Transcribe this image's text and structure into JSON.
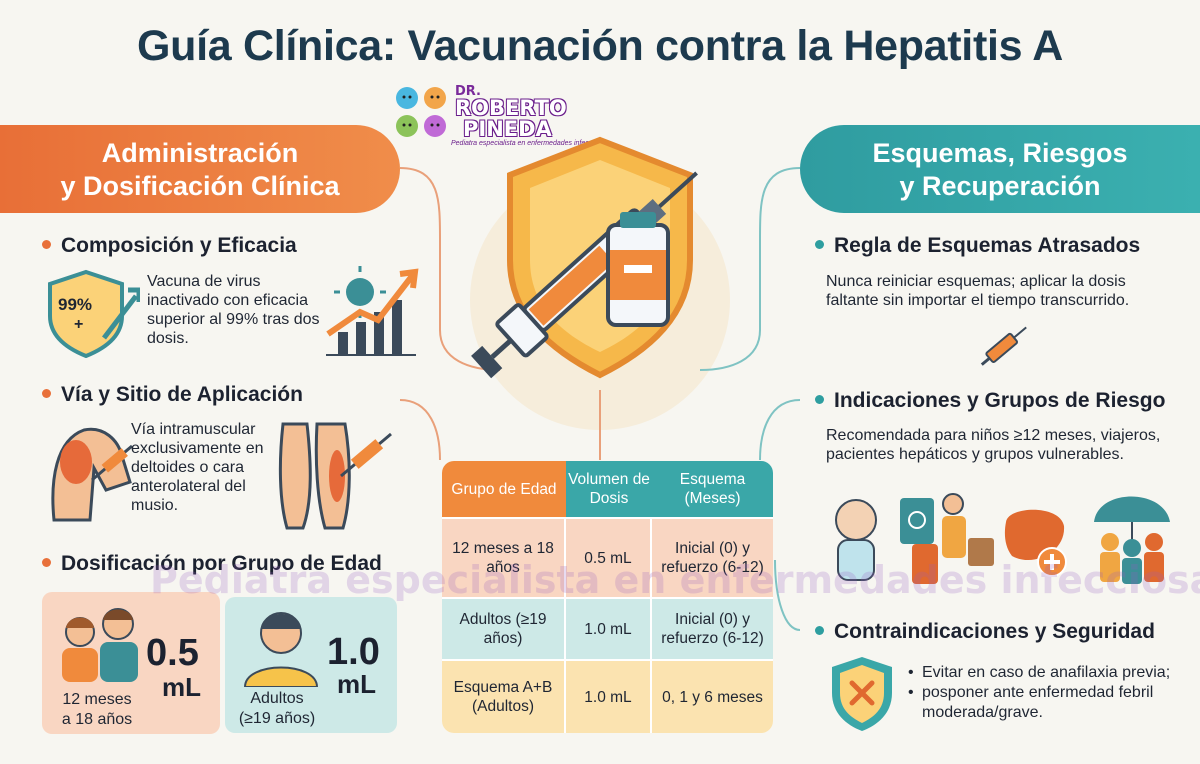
{
  "title": "Guía Clínica: Vacunación contra la Hepatitis A",
  "logo": {
    "prefix": "DR.",
    "line1": "ROBERTO",
    "line2": "PINEDA",
    "tagline": "Pediatra especialista en enfermedades infecciosas"
  },
  "left_section": {
    "banner_line1": "Administración",
    "banner_line2": "y Dosificación Clínica",
    "composition": {
      "heading": "Composición y Eficacia",
      "badge": "99%",
      "badge_plus": "+",
      "text": "Vacuna de virus inactivado con eficacia superior al 99% tras dos dosis."
    },
    "route": {
      "heading": "Vía y Sitio de Aplicación",
      "text": "Vía intramuscular exclusivamente en deltoides o cara anterolateral del musio."
    },
    "dosing": {
      "heading": "Dosificación por Grupo de Edad",
      "card_children": {
        "dose": "0.5",
        "unit": "mL",
        "label_line1": "12 meses",
        "label_line2": "a 18 años"
      },
      "card_adults": {
        "dose": "1.0",
        "unit": "mL",
        "label_line1": "Adultos",
        "label_line2": "(≥19 años)"
      }
    }
  },
  "right_section": {
    "banner_line1": "Esquemas, Riesgos",
    "banner_line2": "y Recuperación",
    "late_schedule": {
      "heading": "Regla de Esquemas Atrasados",
      "text": "Nunca reiniciar esquemas; aplicar la dosis faltante sin importar el tiempo transcurrido."
    },
    "indications": {
      "heading": "Indicaciones y Grupos de Riesgo",
      "text": "Recomendada para niños ≥12 meses, viajeros, pacientes hepáticos y grupos vulnerables."
    },
    "contraindications": {
      "heading": "Contraindicaciones y Seguridad",
      "bullets": [
        "Evitar en caso de anafilaxia previa;",
        "posponer ante enfermedad febril moderada/grave."
      ]
    }
  },
  "table": {
    "headers": [
      "Grupo de Edad",
      "Volumen de Dosis",
      "Esquema (Meses)"
    ],
    "rows": [
      [
        "12 meses a 18 años",
        "0.5 mL",
        "Inicial (0) y refuerzo (6-12)"
      ],
      [
        "Adultos (≥19 años)",
        "1.0 mL",
        "Inicial (0) y refuerzo (6-12)"
      ],
      [
        "Esquema A+B (Adultos)",
        "1.0 mL",
        "0, 1 y 6 meses"
      ]
    ]
  },
  "watermark": "Pediatra especialista en enfermedades infecciosas",
  "colors": {
    "title": "#1d3a4e",
    "orange": "#e8703a",
    "teal": "#2e9ea0",
    "peach": "#f9d6c2",
    "mint": "#cde9e7",
    "cream": "#fbe3b0"
  }
}
